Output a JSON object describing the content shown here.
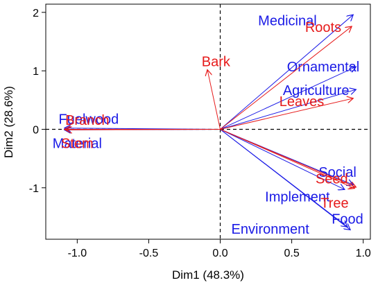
{
  "chart_data": {
    "type": "biplot",
    "xlabel": "Dim1 (48.3%)",
    "ylabel": "Dim2 (28.6%)",
    "xlim": [
      -1.22,
      1.05
    ],
    "ylim": [
      -1.88,
      2.14
    ],
    "xticks": [
      -1.0,
      -0.5,
      0.0,
      0.5,
      1.0
    ],
    "xtick_labels": [
      "-1.0",
      "-0.5",
      "0.0",
      "0.5",
      "1.0"
    ],
    "yticks": [
      -1,
      0,
      1,
      2
    ],
    "ytick_labels": [
      "-1",
      "0",
      "1",
      "2"
    ],
    "grid": false,
    "reference_lines": [
      {
        "axis": "x",
        "value": 0,
        "style": "dashed"
      },
      {
        "axis": "y",
        "value": 0,
        "style": "dashed"
      }
    ],
    "colors": {
      "blue_group": "#1a1ae6",
      "red_group": "#e61a1a",
      "axis": "#000000"
    },
    "series": [
      {
        "color": "#1a1ae6",
        "vectors": [
          {
            "label": "Medicinal",
            "x": 0.93,
            "y": 1.96,
            "lx": 0.47,
            "ly": 1.84
          },
          {
            "label": "Ornamental",
            "x": 0.95,
            "y": 1.07,
            "lx": 0.72,
            "ly": 1.05
          },
          {
            "label": "Agriculture",
            "x": 0.95,
            "y": 0.68,
            "lx": 0.67,
            "ly": 0.65
          },
          {
            "label": "Fuelwood",
            "x": -1.09,
            "y": 0.02,
            "lx": -0.92,
            "ly": 0.16
          },
          {
            "label": "Material",
            "x": -1.09,
            "y": -0.01,
            "lx": -1.0,
            "ly": -0.26
          },
          {
            "label": "Social",
            "x": 0.93,
            "y": -0.95,
            "lx": 0.82,
            "ly": -0.75
          },
          {
            "label": "Implement",
            "x": 0.87,
            "y": -1.03,
            "lx": 0.54,
            "ly": -1.17
          },
          {
            "label": "Food",
            "x": 0.89,
            "y": -1.67,
            "lx": 0.89,
            "ly": -1.55
          },
          {
            "label": "Environment",
            "x": 0.91,
            "y": -1.72,
            "lx": 0.35,
            "ly": -1.72
          }
        ]
      },
      {
        "color": "#e61a1a",
        "vectors": [
          {
            "label": "Roots",
            "x": 0.92,
            "y": 1.76,
            "lx": 0.72,
            "ly": 1.73
          },
          {
            "label": "Bark",
            "x": -0.09,
            "y": 1.02,
            "lx": -0.03,
            "ly": 1.14
          },
          {
            "label": "Leaves",
            "x": 0.93,
            "y": 0.53,
            "lx": 0.57,
            "ly": 0.46
          },
          {
            "label": "Branch",
            "x": -1.09,
            "y": 0.0,
            "lx": -0.93,
            "ly": 0.14
          },
          {
            "label": "Stem",
            "x": -1.08,
            "y": -0.01,
            "lx": -1.0,
            "ly": -0.26
          },
          {
            "label": "Seed",
            "x": 0.95,
            "y": -0.99,
            "lx": 0.78,
            "ly": -0.86
          },
          {
            "label": "Tree",
            "x": 0.94,
            "y": -1.01,
            "lx": 0.8,
            "ly": -1.28
          }
        ]
      }
    ]
  }
}
